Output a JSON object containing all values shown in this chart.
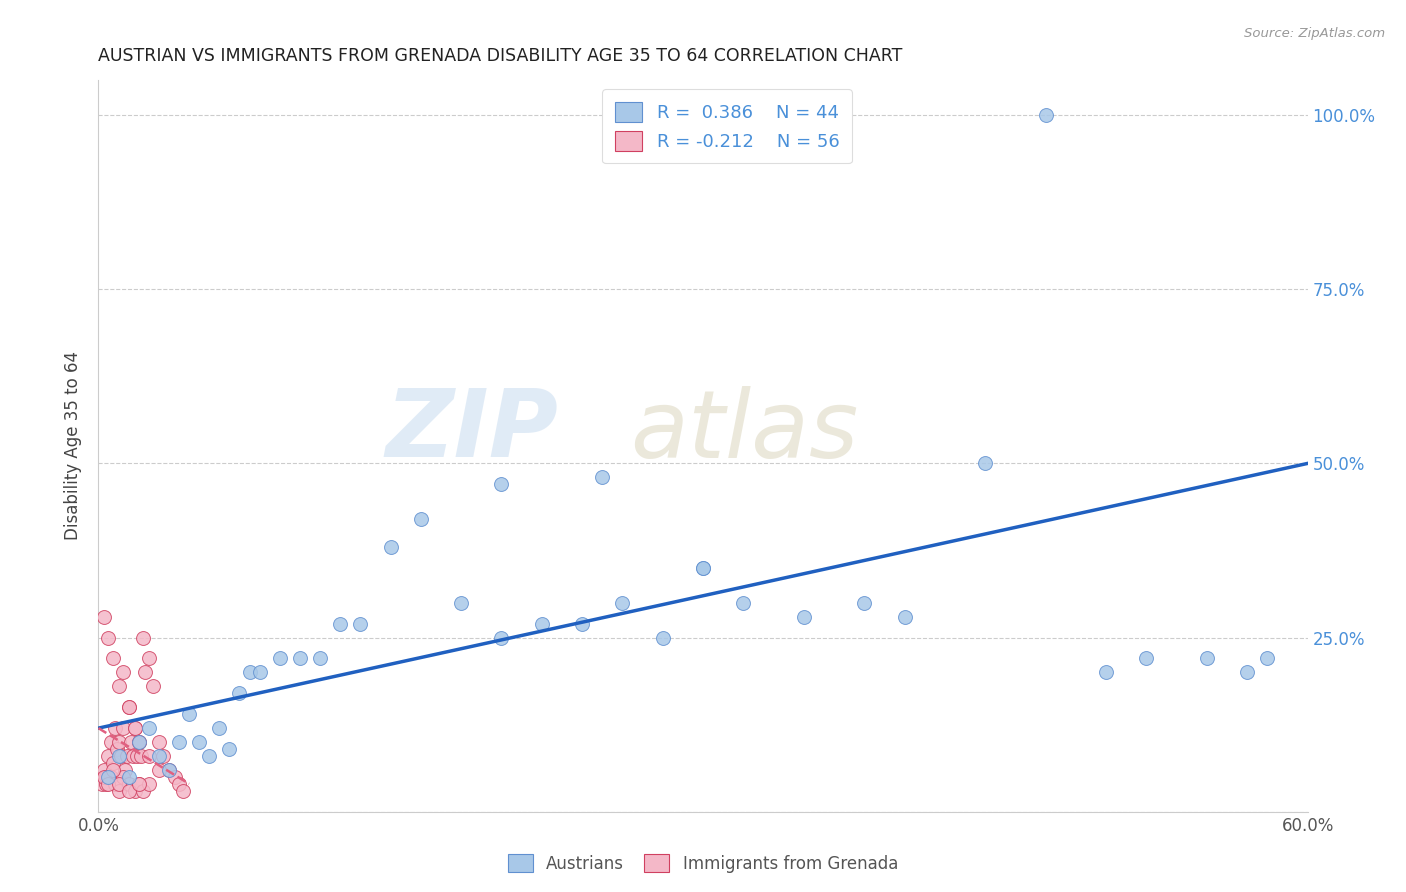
{
  "title": "AUSTRIAN VS IMMIGRANTS FROM GRENADA DISABILITY AGE 35 TO 64 CORRELATION CHART",
  "source": "Source: ZipAtlas.com",
  "ylabel": "Disability Age 35 to 64",
  "xlim": [
    0.0,
    0.6
  ],
  "ylim": [
    0.0,
    1.05
  ],
  "xticks": [
    0.0,
    0.1,
    0.2,
    0.3,
    0.4,
    0.5,
    0.6
  ],
  "xticklabels": [
    "0.0%",
    "",
    "",
    "",
    "",
    "",
    "60.0%"
  ],
  "yticks": [
    0.0,
    0.25,
    0.5,
    0.75,
    1.0
  ],
  "yticklabels": [
    "",
    "25.0%",
    "50.0%",
    "75.0%",
    "100.0%"
  ],
  "blue_color": "#a8c8e8",
  "pink_color": "#f4b8c8",
  "line_blue": "#2060c0",
  "line_pink": "#e06080",
  "blue_edge": "#6090d0",
  "pink_edge": "#d04060",
  "austrians_x": [
    0.005,
    0.01,
    0.015,
    0.02,
    0.025,
    0.03,
    0.035,
    0.04,
    0.045,
    0.05,
    0.055,
    0.06,
    0.065,
    0.07,
    0.075,
    0.08,
    0.09,
    0.1,
    0.11,
    0.12,
    0.13,
    0.145,
    0.16,
    0.18,
    0.2,
    0.22,
    0.24,
    0.26,
    0.28,
    0.3,
    0.32,
    0.35,
    0.38,
    0.4,
    0.44,
    0.5,
    0.52,
    0.55,
    0.57,
    0.58,
    0.2,
    0.3,
    0.25,
    0.47
  ],
  "austrians_y": [
    0.05,
    0.08,
    0.05,
    0.1,
    0.12,
    0.08,
    0.06,
    0.1,
    0.14,
    0.1,
    0.08,
    0.12,
    0.09,
    0.17,
    0.2,
    0.2,
    0.22,
    0.22,
    0.22,
    0.27,
    0.27,
    0.38,
    0.42,
    0.3,
    0.25,
    0.27,
    0.27,
    0.3,
    0.25,
    0.35,
    0.3,
    0.28,
    0.3,
    0.28,
    0.5,
    0.2,
    0.22,
    0.22,
    0.2,
    0.22,
    0.47,
    0.35,
    0.48,
    1.0
  ],
  "grenada_x": [
    0.002,
    0.003,
    0.004,
    0.005,
    0.006,
    0.007,
    0.008,
    0.009,
    0.01,
    0.011,
    0.012,
    0.013,
    0.014,
    0.015,
    0.016,
    0.017,
    0.018,
    0.019,
    0.02,
    0.021,
    0.022,
    0.023,
    0.025,
    0.027,
    0.03,
    0.032,
    0.035,
    0.038,
    0.04,
    0.042,
    0.003,
    0.005,
    0.007,
    0.01,
    0.012,
    0.015,
    0.018,
    0.02,
    0.025,
    0.03,
    0.004,
    0.006,
    0.008,
    0.01,
    0.012,
    0.015,
    0.018,
    0.02,
    0.022,
    0.025,
    0.003,
    0.005,
    0.007,
    0.01,
    0.015,
    0.02
  ],
  "grenada_y": [
    0.04,
    0.06,
    0.05,
    0.08,
    0.1,
    0.07,
    0.12,
    0.09,
    0.1,
    0.08,
    0.12,
    0.06,
    0.08,
    0.15,
    0.1,
    0.08,
    0.12,
    0.08,
    0.1,
    0.08,
    0.25,
    0.2,
    0.22,
    0.18,
    0.1,
    0.08,
    0.06,
    0.05,
    0.04,
    0.03,
    0.28,
    0.25,
    0.22,
    0.18,
    0.2,
    0.15,
    0.12,
    0.1,
    0.08,
    0.06,
    0.04,
    0.05,
    0.04,
    0.03,
    0.05,
    0.04,
    0.03,
    0.04,
    0.03,
    0.04,
    0.05,
    0.04,
    0.06,
    0.04,
    0.03,
    0.04
  ],
  "blue_line_x": [
    0.0,
    0.6
  ],
  "blue_line_y": [
    0.12,
    0.5
  ],
  "pink_line_x": [
    0.0,
    0.045
  ],
  "pink_line_y": [
    0.12,
    0.04
  ]
}
